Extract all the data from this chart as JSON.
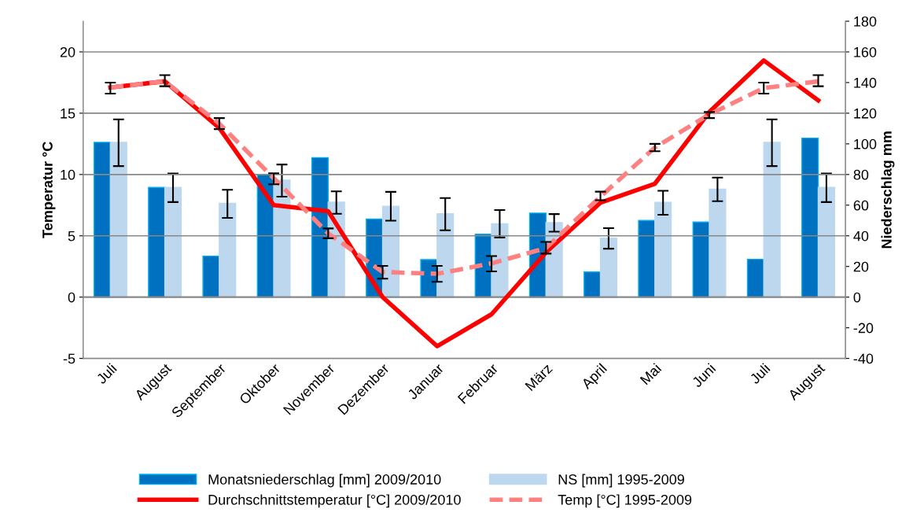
{
  "chart_data": {
    "type": "bar",
    "ylabel": "Temperatur °C",
    "y2label": "Niederschlag mm",
    "categories": [
      "Juli",
      "August",
      "September",
      "Oktober",
      "November",
      "Dezember",
      "Januar",
      "Februar",
      "März",
      "April",
      "Mai",
      "Juni",
      "Juli",
      "August"
    ],
    "series": [
      {
        "name": "Monatsniederschlag [mm] 2009/2010",
        "axis": "y2",
        "color": "#0070c0",
        "values": [
          101,
          71.6,
          26.7,
          80,
          91,
          51,
          24.5,
          41,
          54.8,
          16.4,
          50,
          49,
          24.7,
          103.7
        ]
      },
      {
        "name": "NS [mm] 1995-2009",
        "axis": "y2",
        "color": "#bdd7ee",
        "values": [
          101,
          71.6,
          61.2,
          76.3,
          62,
          59.3,
          54.4,
          47.8,
          48.6,
          38.5,
          61.9,
          70.5,
          101,
          71.6
        ],
        "errors": [
          [
            85.5,
            116
          ],
          [
            62,
            80.7
          ],
          [
            51.7,
            70
          ],
          [
            65.5,
            86.5
          ],
          [
            54.4,
            69
          ],
          [
            49.9,
            68.7
          ],
          [
            43.6,
            64.6
          ],
          [
            38.9,
            56.8
          ],
          [
            42.7,
            54.2
          ],
          [
            31.6,
            45
          ],
          [
            53.7,
            69.4
          ],
          [
            62.6,
            78
          ],
          [
            85.5,
            116
          ],
          [
            62,
            80.7
          ]
        ]
      },
      {
        "name": "Durchschnittstemperatur [°C] 2009/2010",
        "type": "line",
        "color": "#ff0000",
        "line_style": "solid",
        "values": [
          17.1,
          17.6,
          13.8,
          7.5,
          7.0,
          0,
          -4.0,
          -1.4,
          3.65,
          7.7,
          9.25,
          15.1,
          19.3,
          16.05
        ]
      },
      {
        "name": "Temp [°C] 1995-2009",
        "type": "line",
        "color": "#ff8080",
        "line_style": "dashed",
        "values": [
          17.1,
          17.6,
          14.15,
          9.7,
          5.2,
          2.05,
          1.9,
          2.75,
          4.0,
          8.2,
          12.2,
          14.9,
          17.05,
          17.6
        ],
        "errors": [
          [
            16.6,
            17.5
          ],
          [
            17.2,
            18.1
          ],
          [
            13.7,
            14.6
          ],
          [
            9.2,
            10.1
          ],
          [
            4.8,
            5.6
          ],
          [
            1.5,
            2.55
          ],
          [
            1.25,
            2.55
          ],
          [
            2.1,
            3.35
          ],
          [
            3.55,
            4.5
          ],
          [
            7.9,
            8.6
          ],
          [
            11.9,
            12.5
          ],
          [
            14.6,
            15.1
          ],
          [
            16.6,
            17.5
          ],
          [
            17.2,
            18.1
          ]
        ]
      }
    ],
    "ylim": [
      -5,
      22.5
    ],
    "yticks": [
      -5,
      0,
      5,
      10,
      15,
      20
    ],
    "y2lim": [
      -40,
      180
    ],
    "y2ticks": [
      -40,
      -20,
      0,
      20,
      40,
      60,
      80,
      100,
      120,
      140,
      160,
      180
    ],
    "grid": "y",
    "legend": "bottom",
    "marker": "none"
  }
}
